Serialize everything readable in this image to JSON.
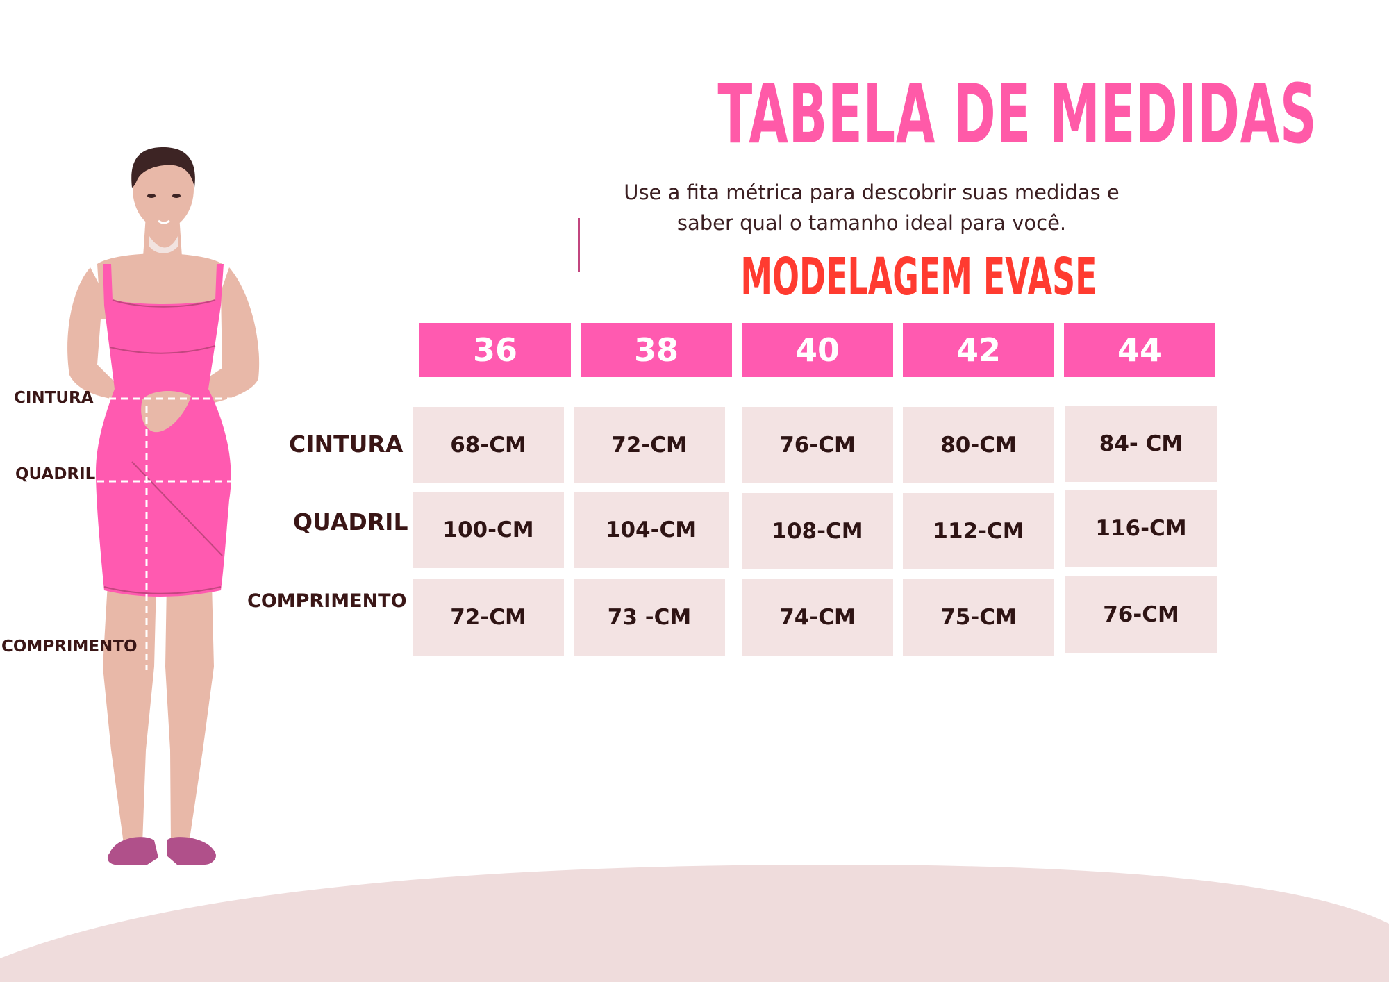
{
  "title": "TABELA DE MEDIDAS",
  "subtitle_line1": "Use a fita métrica para descobrir suas medidas e",
  "subtitle_line2": "saber qual o tamanho ideal para você.",
  "model": "MODELAGEM EVASE",
  "colors": {
    "title": "#ff5aa8",
    "model": "#ff3b30",
    "header_bg": "#ff5ab0",
    "cell_bg": "#f3e3e3",
    "dress": "#ff5ab0",
    "skin": "#e8b8a8",
    "wave": "#efdcdc"
  },
  "sizes": [
    "36",
    "38",
    "40",
    "42",
    "44"
  ],
  "rows": [
    {
      "label": "CINTURA",
      "values": [
        "68-CM",
        "72-CM",
        "76-CM",
        "80-CM",
        "84- CM"
      ]
    },
    {
      "label": "QUADRIL",
      "values": [
        "100-CM",
        "104-CM",
        "108-CM",
        "112-CM",
        "116-CM"
      ]
    },
    {
      "label": "COMPRIMENTO",
      "values": [
        "72-CM",
        "73 -CM",
        "74-CM",
        "75-CM",
        "76-CM"
      ]
    }
  ],
  "body_labels": {
    "cintura": "CINTURA",
    "quadril": "QUADRIL",
    "comprimento": "COMPRIMENTO"
  }
}
